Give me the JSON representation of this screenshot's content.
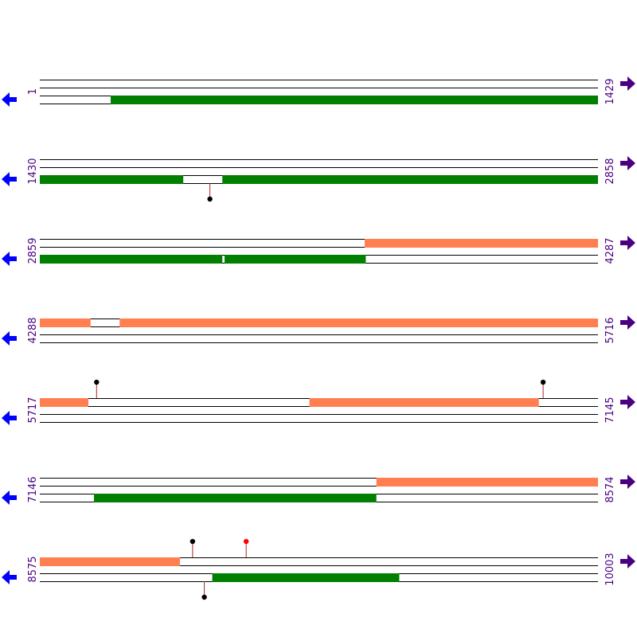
{
  "colors": {
    "track_line": "#000000",
    "green_feature": "#007f00",
    "salmon_feature": "#ff7f50",
    "prev_arrow": "#0000ff",
    "next_arrow": "#4b0082",
    "marker_black": "#000000",
    "marker_red": "#ff0000",
    "marker_stem": "#b22222"
  },
  "icons": {
    "prev": "left-arrow-icon",
    "next": "right-arrow-icon"
  },
  "rows": [
    {
      "start": "1",
      "end": "1429",
      "features": [
        {
          "track": 3,
          "color": "green",
          "segments": [
            [
              0.127,
              1.0
            ]
          ]
        }
      ],
      "markers": []
    },
    {
      "start": "1430",
      "end": "2858",
      "features": [
        {
          "track": 3,
          "color": "green",
          "segments": [
            [
              0.0,
              0.257
            ],
            [
              0.327,
              1.0
            ]
          ]
        }
      ],
      "markers": [
        {
          "pos": 0.304,
          "side": "below",
          "color": "black"
        }
      ]
    },
    {
      "start": "2859",
      "end": "4287",
      "features": [
        {
          "track": 1,
          "color": "salmon",
          "segments": [
            [
              0.582,
              1.0
            ]
          ]
        },
        {
          "track": 3,
          "color": "green",
          "segments": [
            [
              0.0,
              0.327
            ],
            [
              0.331,
              0.584
            ]
          ]
        }
      ],
      "markers": []
    },
    {
      "start": "4288",
      "end": "5716",
      "features": [
        {
          "track": 1,
          "color": "salmon",
          "segments": [
            [
              0.0,
              0.091
            ],
            [
              0.143,
              1.0
            ]
          ]
        }
      ],
      "markers": []
    },
    {
      "start": "5717",
      "end": "7145",
      "features": [
        {
          "track": 1,
          "color": "salmon",
          "segments": [
            [
              0.0,
              0.087
            ],
            [
              0.483,
              0.894
            ]
          ]
        }
      ],
      "markers": [
        {
          "pos": 0.101,
          "side": "above",
          "color": "black"
        },
        {
          "pos": 0.901,
          "side": "above",
          "color": "black"
        }
      ]
    },
    {
      "start": "7146",
      "end": "8574",
      "features": [
        {
          "track": 1,
          "color": "salmon",
          "segments": [
            [
              0.603,
              1.0
            ]
          ]
        },
        {
          "track": 3,
          "color": "green",
          "segments": [
            [
              0.097,
              0.603
            ]
          ]
        }
      ],
      "markers": []
    },
    {
      "start": "8575",
      "end": "10003",
      "features": [
        {
          "track": 1,
          "color": "salmon",
          "segments": [
            [
              0.0,
              0.251
            ]
          ]
        },
        {
          "track": 3,
          "color": "green",
          "segments": [
            [
              0.309,
              0.644
            ]
          ]
        }
      ],
      "markers": [
        {
          "pos": 0.273,
          "side": "above",
          "color": "black"
        },
        {
          "pos": 0.369,
          "side": "above",
          "color": "red"
        },
        {
          "pos": 0.294,
          "side": "below",
          "color": "black"
        }
      ]
    }
  ]
}
